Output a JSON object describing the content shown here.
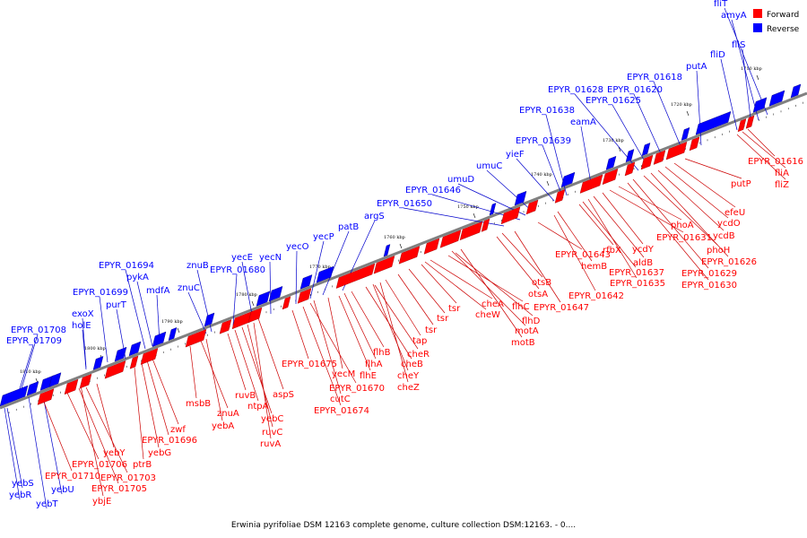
{
  "caption": "Erwinia pyrifoliae DSM 12163 complete genome, culture collection DSM:12163. - 0....",
  "legend": [
    {
      "label": "Forward",
      "color": "#ff0000"
    },
    {
      "label": "Reverse",
      "color": "#0000ff"
    }
  ],
  "colors": {
    "forward": "#ff0000",
    "reverse": "#0000ff",
    "forward_line": "#cc0000",
    "reverse_line": "#0000cc",
    "axis": "#808080"
  },
  "ticks": [
    "1810 kbp",
    "1800 kbp",
    "1790 kbp",
    "1780 kbp",
    "1770 kbp",
    "1760 kbp",
    "1750 kbp",
    "1740 kbp",
    "1730 kbp",
    "1720 kbp",
    "1710 kbp"
  ],
  "reverse_genes": [
    "yebS",
    "yebR",
    "yebT",
    "yebU",
    "EPYR_01709",
    "EPYR_01708",
    "holE",
    "exoX",
    "EPYR_01699",
    "purT",
    "EPYR_01694",
    "pykA",
    "mdfA",
    "znuC",
    "znuB",
    "EPYR_01680",
    "yecE",
    "yecN",
    "yecO",
    "yecP",
    "patB",
    "argS",
    "EPYR_01650",
    "EPYR_01646",
    "umuD",
    "umuC",
    "yieF",
    "EPYR_01639",
    "EPYR_01638",
    "eamA",
    "EPYR_01628",
    "EPYR_01625",
    "EPYR_01620",
    "EPYR_01618",
    "putA",
    "fliD",
    "fliS",
    "amyA",
    "fliT"
  ],
  "forward_genes": [
    "EPYR_01710",
    "EPYR_01706",
    "EPYR_01705",
    "ybjE",
    "EPYR_01703",
    "yebY",
    "ptrB",
    "yebG",
    "EPYR_01696",
    "zwf",
    "msbB",
    "znuA",
    "yebA",
    "ruvB",
    "ntpA",
    "yebC",
    "ruvC",
    "ruvA",
    "aspS",
    "EPYR_01675",
    "EPYR_01670",
    "cutC",
    "EPYR_01674",
    "yecM",
    "flhE",
    "flhA",
    "flhB",
    "cheB",
    "cheY",
    "cheZ",
    "cheR",
    "tap",
    "tsr",
    "tsr",
    "tsr",
    "cheW",
    "cheA",
    "flhC",
    "flhD",
    "motA",
    "motB",
    "otsA",
    "otsB",
    "EPYR_01647",
    "EPYR_01643",
    "EPYR_01642",
    "hemB",
    "rfbX",
    "EPYR_01637",
    "EPYR_01635",
    "aldB",
    "ycdY",
    "EPYR_01631",
    "phoA",
    "EPYR_01630",
    "EPYR_01629",
    "phoH",
    "EPYR_01626",
    "ycdB",
    "ycdO",
    "efeU",
    "putP",
    "fliZ",
    "fliA",
    "EPYR_01616"
  ]
}
